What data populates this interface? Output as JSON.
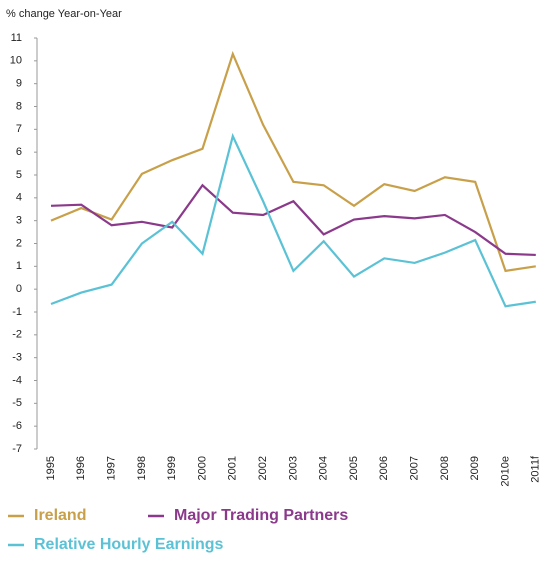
{
  "chart_data": {
    "type": "line",
    "y_axis_label": "% change Year-on-Year",
    "categories": [
      "1995",
      "1996",
      "1997",
      "1998",
      "1999",
      "2000",
      "2001",
      "2002",
      "2003",
      "2004",
      "2005",
      "2006",
      "2007",
      "2008",
      "2009",
      "2010e",
      "2011f"
    ],
    "series": [
      {
        "name": "Ireland",
        "color": "#c9a04a",
        "values": [
          3.0,
          3.55,
          3.05,
          5.05,
          5.65,
          6.15,
          10.3,
          7.2,
          4.7,
          4.55,
          3.65,
          4.6,
          4.3,
          4.9,
          4.7,
          0.8,
          1.0
        ]
      },
      {
        "name": "Major Trading Partners",
        "color": "#8b3a8b",
        "values": [
          3.65,
          3.7,
          2.8,
          2.95,
          2.7,
          4.55,
          3.35,
          3.25,
          3.85,
          2.4,
          3.05,
          3.2,
          3.1,
          3.25,
          2.5,
          1.55,
          1.5
        ]
      },
      {
        "name": "Relative Hourly Earnings",
        "color": "#5bc2d6",
        "values": [
          -0.65,
          -0.15,
          0.2,
          2.0,
          2.95,
          1.55,
          6.7,
          3.85,
          0.8,
          2.1,
          0.55,
          1.35,
          1.15,
          1.6,
          2.15,
          -0.75,
          -0.55
        ]
      }
    ],
    "ylim": [
      -7,
      11
    ],
    "yticks": [
      -7,
      -6,
      -5,
      -4,
      -3,
      -2,
      -1,
      0,
      1,
      2,
      3,
      4,
      5,
      6,
      7,
      8,
      9,
      10,
      11
    ],
    "grid": false
  }
}
